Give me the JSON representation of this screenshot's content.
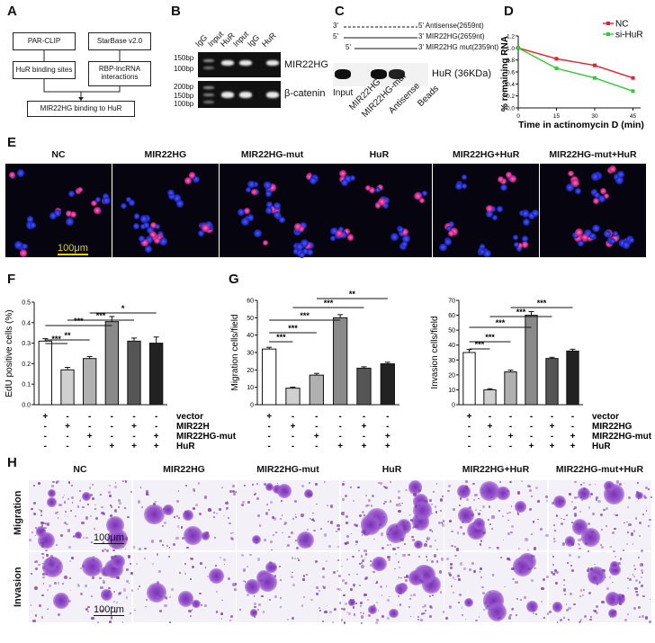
{
  "panels": {
    "A": {
      "label": "A",
      "box_parclip": "PAR-CLIP",
      "box_starbase": "StarBase v2.0",
      "box_hur_sites": "HuR binding sites",
      "box_rbp": "RBP-lncRNA interactions",
      "box_result": "MIR22HG binding to HuR"
    },
    "B": {
      "label": "B",
      "lanes": [
        "IgG",
        "Input",
        "HuR",
        "Input",
        "IgG",
        "HuR"
      ],
      "markers_top": [
        "150bp",
        "100bp"
      ],
      "markers_bottom": [
        "200bp",
        "150bp",
        "100bp"
      ],
      "row1": "MIR22HG",
      "row2": "β-catenin"
    },
    "C": {
      "label": "C",
      "probes": [
        {
          "left": "3'",
          "right": "5' Antisense(2659nt)"
        },
        {
          "left": "5'",
          "right": "3' MIR22HG(2659nt)"
        },
        {
          "left": "5'",
          "right": "3' MIR22HG  mut(2359nt)"
        }
      ],
      "protein": "HuR (36KDa)",
      "lanes": [
        "Input",
        "MIR22HG",
        "MIR22HG-mut",
        "Antisense",
        "Beads"
      ]
    },
    "D": {
      "label": "D",
      "ylabel": "% remaining RNA",
      "xlabel": "Time in actinomycin D (min)"
    },
    "E": {
      "label": "E",
      "titles": [
        "NC",
        "MIR22HG",
        "MIR22HG-mut",
        "HuR",
        "MIR22HG+HuR",
        "MIR22HG-mut+HuR"
      ],
      "scale": "100μm"
    },
    "F": {
      "label": "F",
      "ylabel": "EdU positive cells (%)",
      "rows": [
        {
          "name": "vector",
          "marks": [
            "+",
            "-",
            "-",
            "-",
            "-",
            "-"
          ]
        },
        {
          "name": "MIR22H",
          "marks": [
            "-",
            "+",
            "-",
            "-",
            "+",
            "-"
          ]
        },
        {
          "name": "MIR22HG-mut",
          "marks": [
            "-",
            "-",
            "+",
            "-",
            "-",
            "+"
          ]
        },
        {
          "name": "HuR",
          "marks": [
            "-",
            "-",
            "-",
            "+",
            "+",
            "+"
          ]
        }
      ]
    },
    "G": {
      "label": "G",
      "rows": [
        {
          "name": "vector",
          "marks": [
            "+",
            "-",
            "-",
            "-",
            "-",
            "-"
          ]
        },
        {
          "name": "MIR22HG",
          "marks": [
            "-",
            "+",
            "-",
            "-",
            "+",
            "-"
          ]
        },
        {
          "name": "MIR22HG-mut",
          "marks": [
            "-",
            "-",
            "+",
            "-",
            "-",
            "+"
          ]
        },
        {
          "name": "HuR",
          "marks": [
            "-",
            "-",
            "-",
            "+",
            "+",
            "+"
          ]
        }
      ]
    },
    "H": {
      "label": "H",
      "titles": [
        "NC",
        "MIR22HG",
        "MIR22HG-mut",
        "HuR",
        "MIR22HG+HuR",
        "MIR22HG-mut+HuR"
      ],
      "row_labels": [
        "Migration",
        "Invasion"
      ],
      "scale": "100μm"
    }
  },
  "chart_data": [
    {
      "id": "D",
      "type": "line",
      "x": [
        0,
        15,
        30,
        45
      ],
      "xticks": [
        "0",
        "15",
        "30",
        "45"
      ],
      "yticks": [
        "0.0",
        "0.2",
        "0.4",
        "0.6",
        "0.8",
        "1.0",
        "1.2"
      ],
      "ylim": [
        0,
        1.2
      ],
      "xlim": [
        0,
        48
      ],
      "xlabel": "Time in actinomycin D (min)",
      "ylabel": "% remaining RNA",
      "legend": "top-right",
      "series": [
        {
          "name": "NC",
          "color": "#e8202a",
          "values": [
            1.0,
            0.82,
            0.71,
            0.5
          ]
        },
        {
          "name": "si-HuR",
          "color": "#35c83a",
          "values": [
            1.0,
            0.66,
            0.5,
            0.28
          ]
        }
      ]
    },
    {
      "id": "F",
      "type": "bar",
      "ylabel": "EdU positive cells (%)",
      "ylim": [
        0,
        0.5
      ],
      "yticks": [
        "0.0",
        "0.1",
        "0.2",
        "0.3",
        "0.4",
        "0.5"
      ],
      "values": [
        0.31,
        0.17,
        0.225,
        0.405,
        0.31,
        0.3
      ],
      "errors": [
        0.012,
        0.012,
        0.01,
        0.025,
        0.015,
        0.03
      ],
      "colors": [
        "#ffffff",
        "#d0d0d0",
        "#b0b0b0",
        "#8a8a8a",
        "#555555",
        "#222222"
      ],
      "sig": [
        {
          "from": 0,
          "to": 1,
          "label": "***"
        },
        {
          "from": 0,
          "to": 2,
          "label": "**"
        },
        {
          "from": 0,
          "to": 3,
          "label": "***"
        },
        {
          "from": 1,
          "to": 4,
          "label": "***"
        },
        {
          "from": 2,
          "to": 5,
          "label": "*"
        }
      ]
    },
    {
      "id": "G-migration",
      "type": "bar",
      "ylabel": "Migration cells/field",
      "ylim": [
        0,
        60
      ],
      "yticks": [
        "0",
        "10",
        "20",
        "30",
        "40",
        "50",
        "60"
      ],
      "values": [
        32,
        9.5,
        17,
        50,
        21,
        23.5
      ],
      "errors": [
        1,
        0.6,
        1,
        1.8,
        0.8,
        0.9
      ],
      "colors": [
        "#ffffff",
        "#d0d0d0",
        "#b0b0b0",
        "#8a8a8a",
        "#555555",
        "#222222"
      ],
      "sig": [
        {
          "from": 0,
          "to": 1,
          "label": "***"
        },
        {
          "from": 0,
          "to": 2,
          "label": "***"
        },
        {
          "from": 0,
          "to": 3,
          "label": "***"
        },
        {
          "from": 1,
          "to": 4,
          "label": "***"
        },
        {
          "from": 2,
          "to": 5,
          "label": "**"
        }
      ]
    },
    {
      "id": "G-invasion",
      "type": "bar",
      "ylabel": "Invasion cells/field",
      "ylim": [
        0,
        70
      ],
      "yticks": [
        "0",
        "10",
        "20",
        "30",
        "40",
        "50",
        "60",
        "70"
      ],
      "values": [
        35,
        10,
        22,
        60,
        31,
        36
      ],
      "errors": [
        2,
        0.7,
        1.2,
        2.5,
        0.8,
        1.2
      ],
      "colors": [
        "#ffffff",
        "#d0d0d0",
        "#b0b0b0",
        "#8a8a8a",
        "#555555",
        "#222222"
      ],
      "sig": [
        {
          "from": 0,
          "to": 1,
          "label": "***"
        },
        {
          "from": 0,
          "to": 2,
          "label": "***"
        },
        {
          "from": 0,
          "to": 3,
          "label": "***"
        },
        {
          "from": 1,
          "to": 4,
          "label": "***"
        },
        {
          "from": 2,
          "to": 5,
          "label": "***"
        }
      ]
    }
  ]
}
